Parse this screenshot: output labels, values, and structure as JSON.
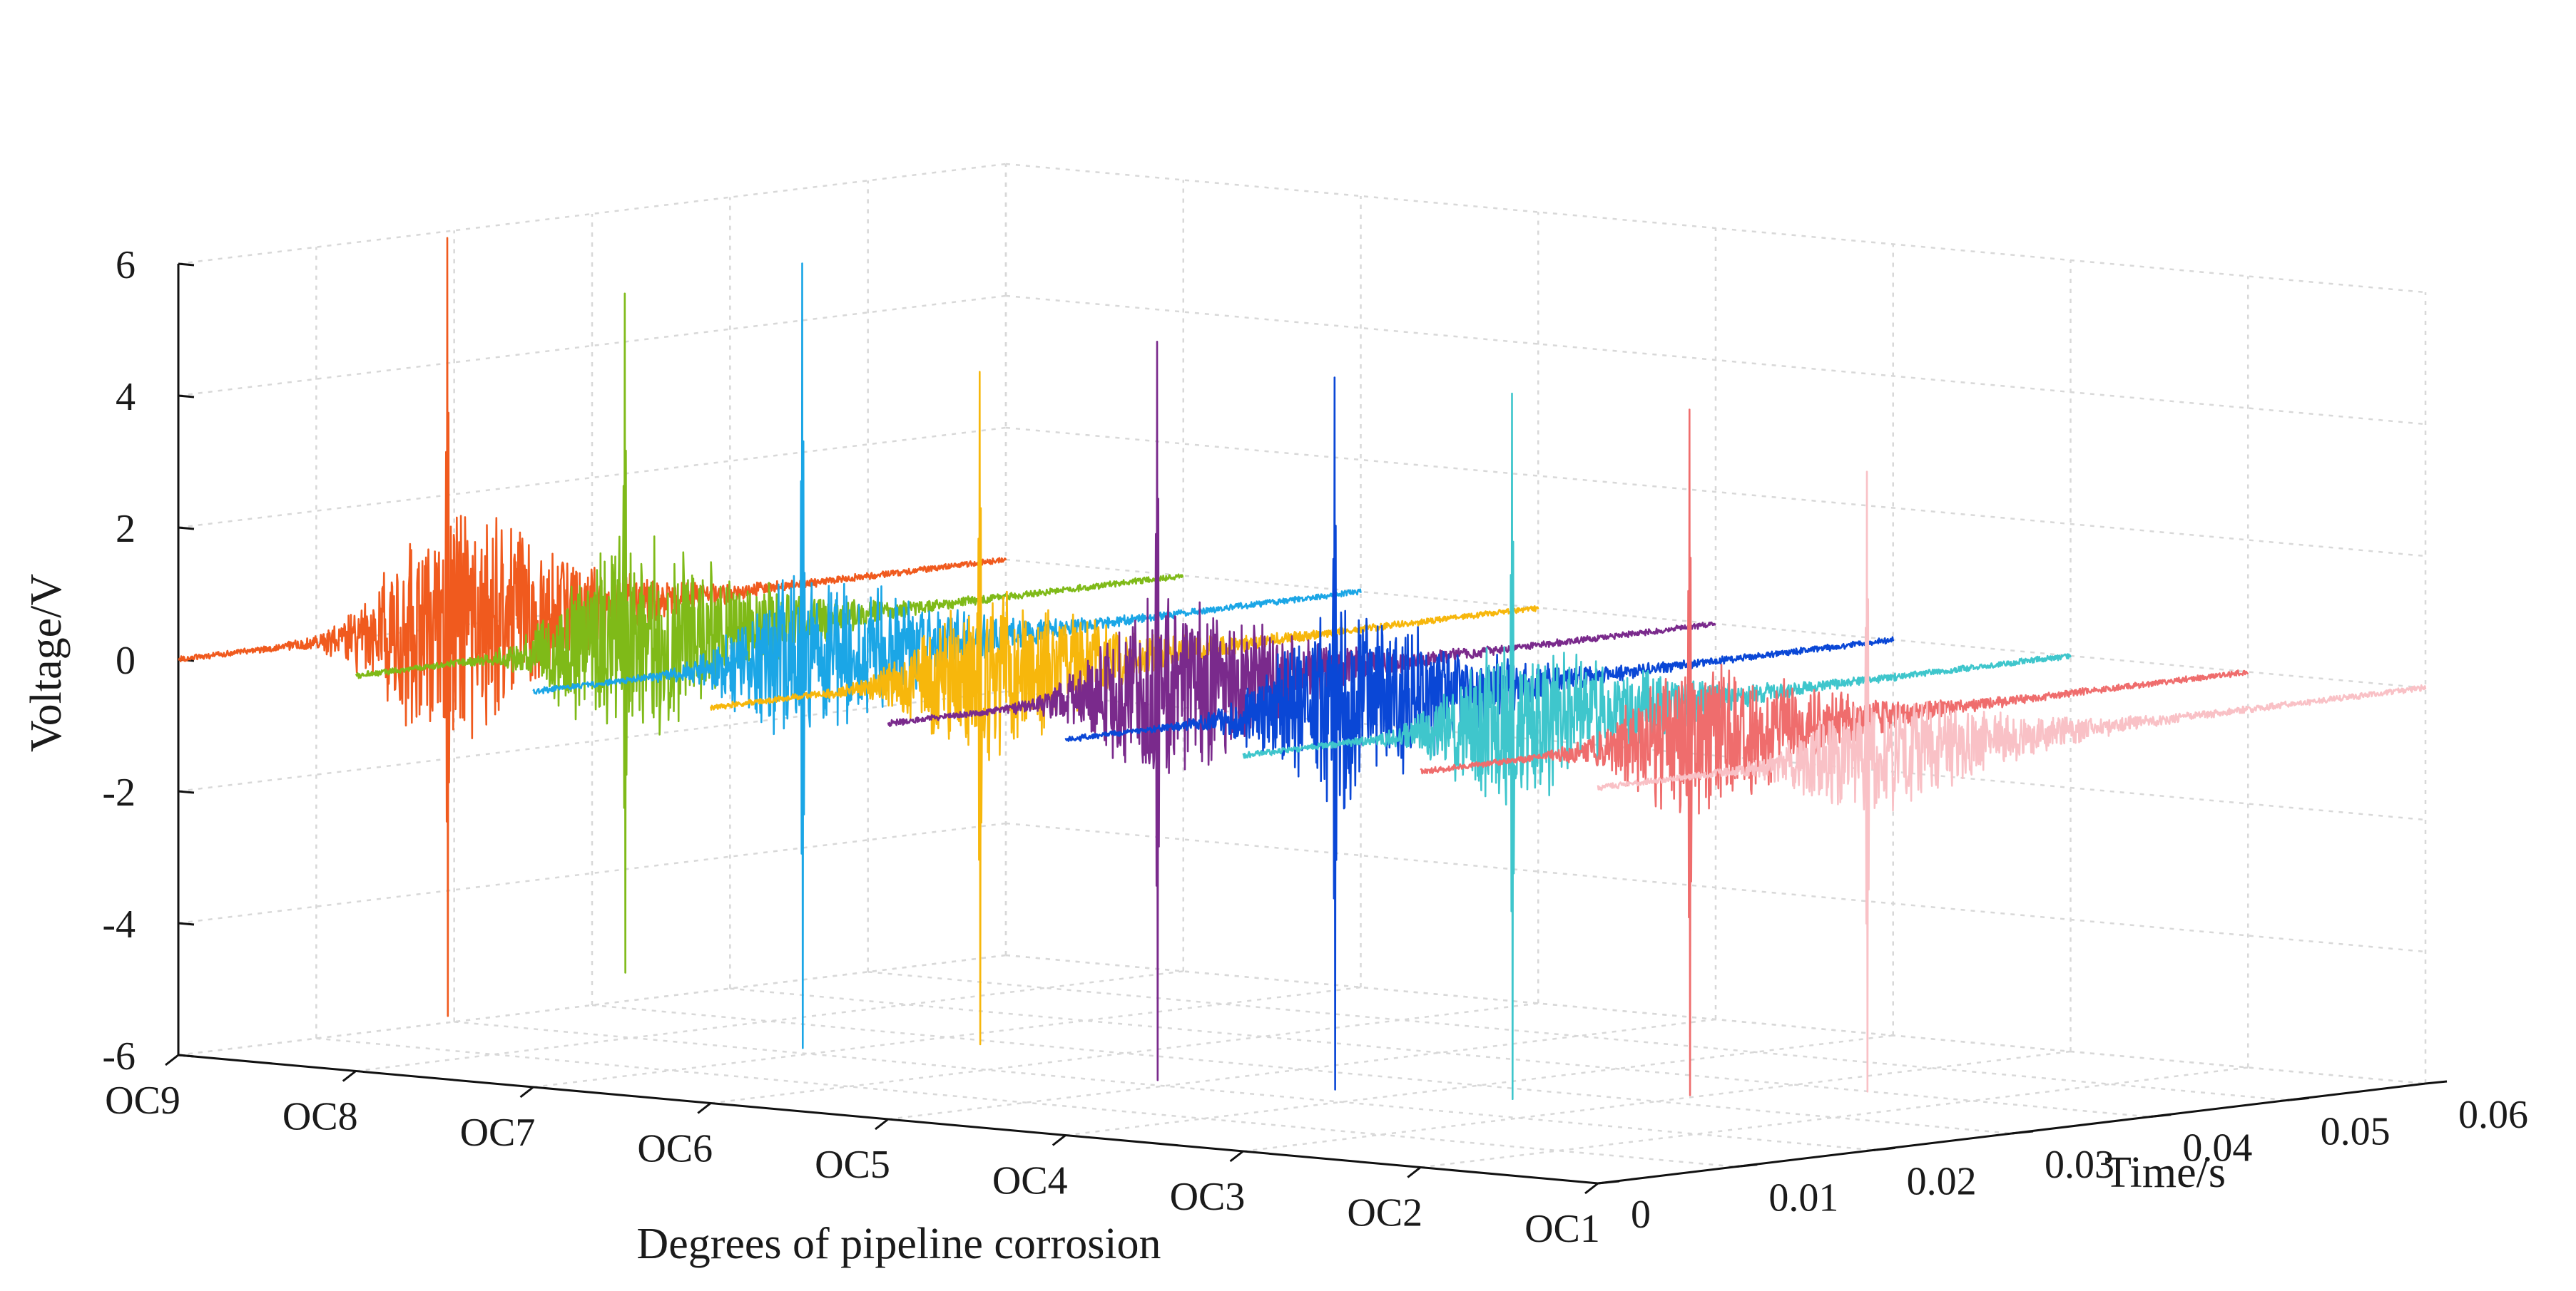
{
  "chart_data": {
    "type": "line",
    "title": "",
    "xlabel": "Degrees of pipeline corrosion",
    "ylabel": "Time/s",
    "zlabel": "Voltage/V",
    "categories": [
      "OC9",
      "OC8",
      "OC7",
      "OC6",
      "OC5",
      "OC4",
      "OC3",
      "OC2",
      "OC1"
    ],
    "time_ticks": [
      "0",
      "0.01",
      "0.02",
      "0.03",
      "0.04",
      "0.05",
      "0.06"
    ],
    "time_range": [
      0,
      0.06
    ],
    "voltage_ticks": [
      "6",
      "4",
      "2",
      "0",
      "-2",
      "-4",
      "-6"
    ],
    "voltage_range": [
      -6,
      6
    ],
    "grid": true,
    "series": [
      {
        "name": "OC9",
        "color": "#f05a1e",
        "peak_time": 0.0195,
        "peak_pos": 5.9,
        "peak_neg": -5.9,
        "envelope": 2.0
      },
      {
        "name": "OC8",
        "color": "#7fba18",
        "peak_time": 0.0195,
        "peak_pos": 5.3,
        "peak_neg": -5.0,
        "envelope": 1.7
      },
      {
        "name": "OC7",
        "color": "#1ba6e6",
        "peak_time": 0.0195,
        "peak_pos": 6.0,
        "peak_neg": -5.9,
        "envelope": 1.4
      },
      {
        "name": "OC6",
        "color": "#f7b70c",
        "peak_time": 0.0195,
        "peak_pos": 4.6,
        "peak_neg": -5.6,
        "envelope": 1.3
      },
      {
        "name": "OC5",
        "color": "#7a2a8c",
        "peak_time": 0.0195,
        "peak_pos": 5.3,
        "peak_neg": -5.9,
        "envelope": 1.5
      },
      {
        "name": "OC4",
        "color": "#0a47d6",
        "peak_time": 0.0195,
        "peak_pos": 5.0,
        "peak_neg": -5.8,
        "envelope": 1.6
      },
      {
        "name": "OC3",
        "color": "#3fc6cc",
        "peak_time": 0.0195,
        "peak_pos": 5.0,
        "peak_neg": -5.7,
        "envelope": 1.3
      },
      {
        "name": "OC2",
        "color": "#ef6d6d",
        "peak_time": 0.0195,
        "peak_pos": 5.0,
        "peak_neg": -5.4,
        "envelope": 1.2
      },
      {
        "name": "OC1",
        "color": "#f9c1c6",
        "peak_time": 0.0195,
        "peak_pos": 4.3,
        "peak_neg": -5.1,
        "envelope": 1.0
      }
    ]
  }
}
